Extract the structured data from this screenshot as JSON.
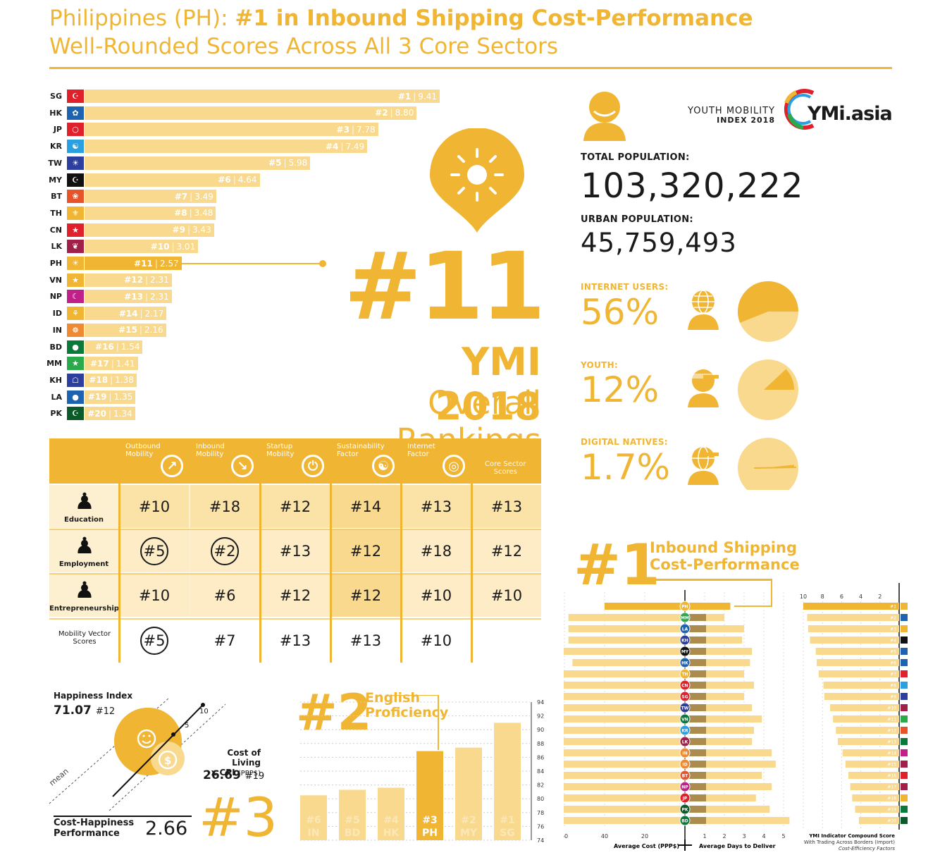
{
  "header": {
    "title_prefix": "Philippines (PH): ",
    "title_bold": "#1 in Inbound Shipping Cost-Performance",
    "subtitle": "Well-Rounded Scores Across All 3 Core Sectors"
  },
  "rankings": [
    {
      "code": "SG",
      "rank": "#1",
      "score": "9.41",
      "color": "#e0202b",
      "icon": "☪"
    },
    {
      "code": "HK",
      "rank": "#2",
      "score": "8.80",
      "color": "#1e63b0",
      "icon": "✿"
    },
    {
      "code": "JP",
      "rank": "#3",
      "score": "7.78",
      "color": "#e0202b",
      "icon": "○"
    },
    {
      "code": "KR",
      "rank": "#4",
      "score": "7.49",
      "color": "#2aa0e0",
      "icon": "☯"
    },
    {
      "code": "TW",
      "rank": "#5",
      "score": "5.98",
      "color": "#2c3e9e",
      "icon": "☀"
    },
    {
      "code": "MY",
      "rank": "#6",
      "score": "4.64",
      "color": "#111111",
      "icon": "☪"
    },
    {
      "code": "BT",
      "rank": "#7",
      "score": "3.49",
      "color": "#e8542a",
      "icon": "❀"
    },
    {
      "code": "TH",
      "rank": "#8",
      "score": "3.48",
      "color": "#f0b532",
      "icon": "⚜"
    },
    {
      "code": "CN",
      "rank": "#9",
      "score": "3.43",
      "color": "#e0202b",
      "icon": "★"
    },
    {
      "code": "LK",
      "rank": "#10",
      "score": "3.01",
      "color": "#a0204a",
      "icon": "❦"
    },
    {
      "code": "PH",
      "rank": "#11",
      "score": "2.57",
      "color": "#f0b532",
      "icon": "☀"
    },
    {
      "code": "VN",
      "rank": "#12",
      "score": "2.31",
      "color": "#f0b532",
      "icon": "★"
    },
    {
      "code": "NP",
      "rank": "#13",
      "score": "2.31",
      "color": "#c0208a",
      "icon": "☾"
    },
    {
      "code": "ID",
      "rank": "#14",
      "score": "2.17",
      "color": "#f0b532",
      "icon": "⚘"
    },
    {
      "code": "IN",
      "rank": "#15",
      "score": "2.16",
      "color": "#f08a32",
      "icon": "☸"
    },
    {
      "code": "BD",
      "rank": "#16",
      "score": "1.54",
      "color": "#0a7a3a",
      "icon": "●"
    },
    {
      "code": "MM",
      "rank": "#17",
      "score": "1.41",
      "color": "#2aaa4a",
      "icon": "★"
    },
    {
      "code": "KH",
      "rank": "#18",
      "score": "1.38",
      "color": "#2c3e9e",
      "icon": "☖"
    },
    {
      "code": "LA",
      "rank": "#19",
      "score": "1.35",
      "color": "#1e63b0",
      "icon": "●"
    },
    {
      "code": "PK",
      "rank": "#20",
      "score": "1.34",
      "color": "#0a5a2a",
      "icon": "☪"
    }
  ],
  "center": {
    "rank": "#11",
    "line1": "YMI 2018",
    "line2": "Overall Rankings"
  },
  "brand": {
    "line1": "YOUTH MOBILITY",
    "line2": "INDEX 2018",
    "logo": "YMi.asia"
  },
  "stats": {
    "total_pop_label": "TOTAL POPULATION:",
    "total_pop": "103,320,222",
    "urban_pop_label": "URBAN POPULATION:",
    "urban_pop": "45,759,493",
    "internet_label": "INTERNET USERS:",
    "internet": "56%",
    "internet_frac": 0.56,
    "youth_label": "YOUTH:",
    "youth": "12%",
    "youth_frac": 0.12,
    "digital_label": "DIGITAL NATIVES:",
    "digital": "1.7%",
    "digital_frac": 0.017
  },
  "table": {
    "columns": [
      {
        "l1": "Outbound",
        "l2": "Mobility",
        "icon": "outbound-icon"
      },
      {
        "l1": "Inbound",
        "l2": "Mobility",
        "icon": "inbound-icon"
      },
      {
        "l1": "Startup",
        "l2": "Mobility",
        "icon": "power-icon"
      },
      {
        "l1": "Sustainability",
        "l2": "Factor",
        "icon": "yin-yang-icon"
      },
      {
        "l1": "Internet",
        "l2": "Factor",
        "icon": "globe-icon"
      },
      {
        "l1": "Core Sector",
        "l2": "Scores",
        "icon": ""
      }
    ],
    "rows": [
      {
        "label": "Education",
        "icon": "graduate-icon",
        "cells": [
          "#10",
          "#18",
          "#12",
          "#14",
          "#13",
          "#13"
        ],
        "circled": [
          false,
          false,
          false,
          false,
          false,
          false
        ]
      },
      {
        "label": "Employment",
        "icon": "employee-icon",
        "cells": [
          "#5",
          "#2",
          "#13",
          "#12",
          "#18",
          "#12"
        ],
        "circled": [
          true,
          true,
          false,
          false,
          false,
          false
        ]
      },
      {
        "label": "Entrepreneurship",
        "icon": "entrepreneur-icon",
        "cells": [
          "#10",
          "#6",
          "#12",
          "#12",
          "#10",
          "#10"
        ],
        "circled": [
          false,
          false,
          false,
          false,
          false,
          false
        ]
      },
      {
        "label": "Mobility Vector Scores",
        "icon": "",
        "cells": [
          "#5",
          "#7",
          "#13",
          "#13",
          "#10",
          ""
        ],
        "circled": [
          true,
          false,
          false,
          false,
          false,
          false
        ]
      }
    ]
  },
  "happiness": {
    "title": "Happiness Index",
    "value": "71.07",
    "rank": "#12",
    "col_title_1": "Cost of Living",
    "col_title_2": "x CPI",
    "col_unit": "(PPP$)",
    "col_value": "26.69",
    "col_rank": "#19",
    "mean_label": "mean",
    "axis_5": "5",
    "axis_10": "10",
    "ch_title_1": "Cost-Happiness",
    "ch_title_2": "Performance",
    "ch_value": "2.66",
    "ch_rank": "#3"
  },
  "english": {
    "rank": "#2",
    "label1": "English",
    "label2": "Proficiency",
    "y_ticks": [
      "94",
      "92",
      "90",
      "88",
      "86",
      "84",
      "82",
      "80",
      "78",
      "76",
      "74"
    ],
    "bars": [
      {
        "rank": "#6",
        "code": "IN",
        "value": 80.5,
        "hl": false
      },
      {
        "rank": "#5",
        "code": "BD",
        "value": 81.3,
        "hl": false
      },
      {
        "rank": "#4",
        "code": "HK",
        "value": 81.6,
        "hl": false
      },
      {
        "rank": "#3",
        "code": "PH",
        "value": 86.9,
        "hl": true
      },
      {
        "rank": "#2",
        "code": "MY",
        "value": 87.4,
        "hl": false
      },
      {
        "rank": "#1",
        "code": "SG",
        "value": 91.0,
        "hl": false
      }
    ]
  },
  "shipping": {
    "rank": "#1",
    "label1": "Inbound Shipping",
    "label2": "Cost-Performance",
    "countries": [
      {
        "code": "PH",
        "cost": 40,
        "days": 2.3,
        "color": "#f0b532"
      },
      {
        "code": "MM",
        "cost": 58,
        "days": 2.0,
        "color": "#2aaa4a"
      },
      {
        "code": "LA",
        "cost": 58,
        "days": 3.0,
        "color": "#1e63b0"
      },
      {
        "code": "KH",
        "cost": 58,
        "days": 2.9,
        "color": "#2c3e9e"
      },
      {
        "code": "MY",
        "cost": 65,
        "days": 3.4,
        "color": "#111111"
      },
      {
        "code": "HK",
        "cost": 56,
        "days": 3.3,
        "color": "#1e63b0"
      },
      {
        "code": "TH",
        "cost": 68,
        "days": 3.0,
        "color": "#f0b532"
      },
      {
        "code": "CN",
        "cost": 68,
        "days": 3.5,
        "color": "#e0202b"
      },
      {
        "code": "SG",
        "cost": 85,
        "days": 3.0,
        "color": "#e0202b"
      },
      {
        "code": "TW",
        "cost": 73,
        "days": 3.4,
        "color": "#2c3e9e"
      },
      {
        "code": "VN",
        "cost": 69,
        "days": 3.9,
        "color": "#0a7a3a"
      },
      {
        "code": "KR",
        "cost": 80,
        "days": 3.5,
        "color": "#2aa0e0"
      },
      {
        "code": "LK",
        "cost": 86,
        "days": 3.4,
        "color": "#a0204a"
      },
      {
        "code": "IN",
        "cost": 65,
        "days": 4.4,
        "color": "#f08a32"
      },
      {
        "code": "ID",
        "cost": 70,
        "days": 4.6,
        "color": "#f08a32"
      },
      {
        "code": "BT",
        "cost": 82,
        "days": 3.9,
        "color": "#e8542a"
      },
      {
        "code": "NP",
        "cost": 76,
        "days": 4.4,
        "color": "#c0208a"
      },
      {
        "code": "JP",
        "cost": 116,
        "days": 3.6,
        "color": "#e0202b"
      },
      {
        "code": "PK",
        "cost": 102,
        "days": 4.3,
        "color": "#0a5a2a"
      },
      {
        "code": "BD",
        "cost": 96,
        "days": 5.3,
        "color": "#0a7a3a"
      }
    ],
    "left_ticks": [
      "120",
      "100",
      "80",
      "60",
      "40",
      "20"
    ],
    "right_ticks": [
      "1",
      "2",
      "3",
      "4",
      "5"
    ],
    "left_axis_label": "Average Cost (PPP$)",
    "right_axis_label": "Average Days to Deliver",
    "compound_ticks": [
      "10",
      "8",
      "6",
      "4",
      "2"
    ],
    "compound_scores": [
      10.0,
      9.6,
      9.5,
      9.3,
      8.7,
      8.6,
      8.4,
      7.9,
      7.8,
      7.2,
      6.9,
      6.6,
      6.4,
      5.9,
      5.6,
      5.3,
      5.1,
      4.9,
      4.6,
      4.2
    ],
    "compound_colors": [
      "#f0b532",
      "#1e63b0",
      "#f0b532",
      "#111111",
      "#1e63b0",
      "#1e63b0",
      "#e0202b",
      "#2aa0e0",
      "#2c3e9e",
      "#a0204a",
      "#2aaa4a",
      "#e8542a",
      "#0a7a3a",
      "#c0208a",
      "#a0204a",
      "#e0202b",
      "#a0204a",
      "#f0b532",
      "#0a7a3a",
      "#0a5a2a"
    ],
    "compound_ranks": [
      "#1",
      "#2",
      "#3",
      "#4",
      "#5",
      "#6",
      "#7",
      "#8",
      "#9",
      "#10",
      "#11",
      "#12",
      "#13",
      "#14",
      "#15",
      "#16",
      "#17",
      "#18",
      "#19",
      "#20"
    ],
    "compound_title": "YMI Indicator Compound Score",
    "compound_sub1": "With Trading Across Borders (Import)",
    "compound_sub2": "Cost-Efficiency Factors"
  }
}
